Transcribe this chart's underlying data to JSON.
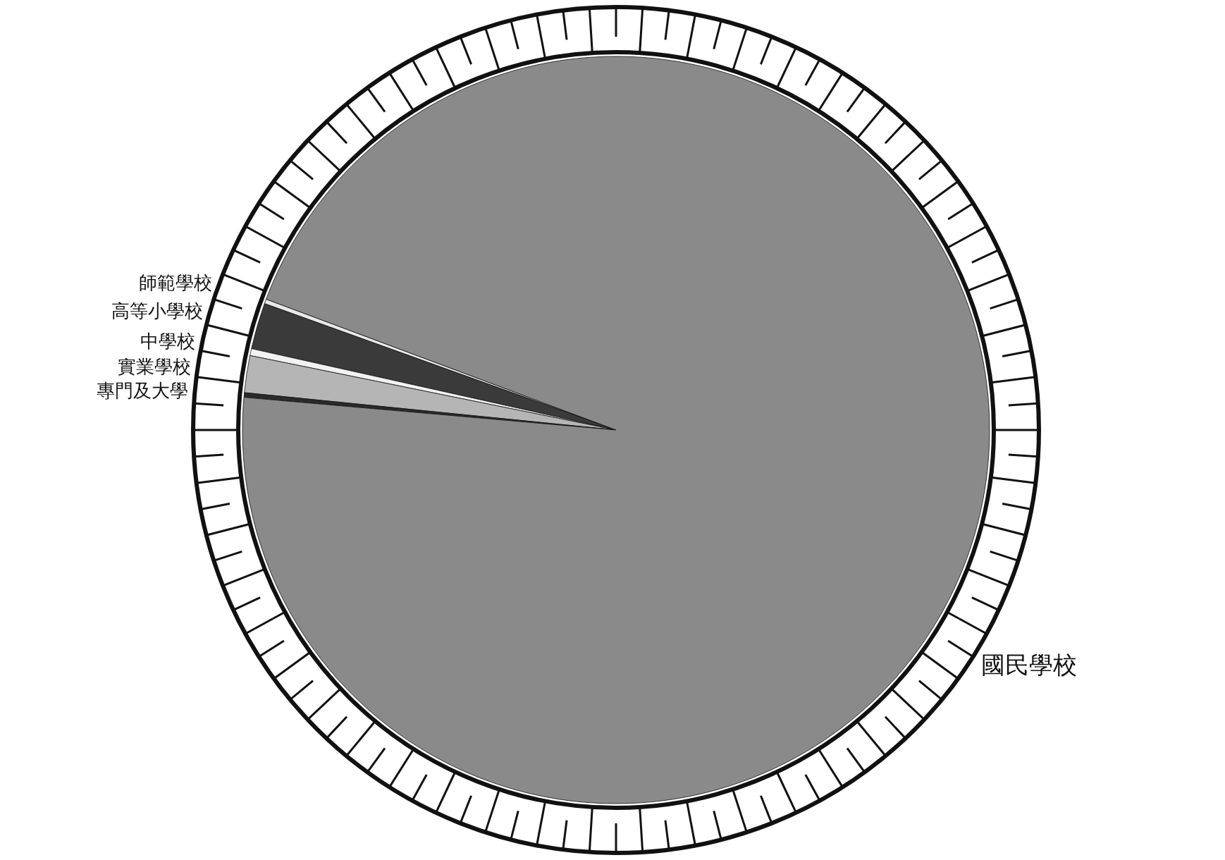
{
  "chart_data": {
    "type": "pie",
    "categories": [
      "師範學校",
      "高等小學校",
      "中學校",
      "實業學校",
      "專門及大學",
      "國民學校"
    ],
    "values": [
      0.2,
      2.0,
      0.3,
      1.6,
      0.2,
      95.7
    ],
    "colors": [
      "#e8e8e8",
      "#3a3a3a",
      "#f2f2f2",
      "#b5b5b5",
      "#2a2a2a",
      "#8a8a8a"
    ]
  }
}
